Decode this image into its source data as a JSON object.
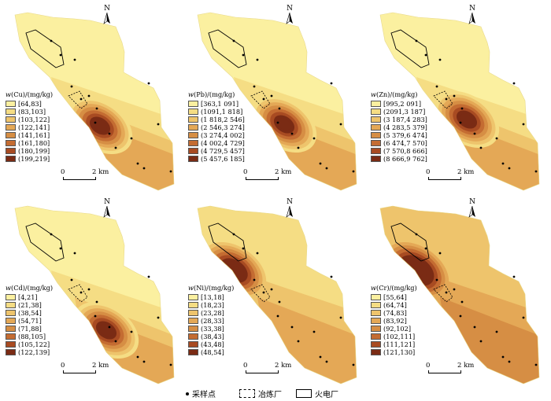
{
  "colors": {
    "ramp": [
      "#fbf0a0",
      "#f5dd84",
      "#eec46c",
      "#e4a856",
      "#d68e44",
      "#c46c32",
      "#a84b22",
      "#7a2b14"
    ],
    "outline": "#000000"
  },
  "north_label": "N",
  "scale_labels": {
    "start": "0",
    "end": "2 km"
  },
  "panels": [
    {
      "id": "cu",
      "title_prefix": "w",
      "title_rest": "(Cu)/(mg/kg)",
      "classes": [
        "[64,83]",
        "(83,103]",
        "(103,122]",
        "(122,141]",
        "(141,161]",
        "(161,180]",
        "(180,199]",
        "(199,219]"
      ]
    },
    {
      "id": "pb",
      "title_prefix": "w",
      "title_rest": "(Pb)/(mg/kg)",
      "classes": [
        "[363,1 091]",
        "(1091,1 818]",
        "(1 818,2 546]",
        "(2 546,3 274]",
        "(3 274,4 002]",
        "(4 002,4 729]",
        "(4 729,5 457]",
        "(5 457,6 185]"
      ]
    },
    {
      "id": "zn",
      "title_prefix": "w",
      "title_rest": "(Zn)/(mg/kg)",
      "classes": [
        "[995,2 091]",
        "(2091,3 187]",
        "(3 187,4 283]",
        "(4 283,5 379]",
        "(5 379,6 474]",
        "(6 474,7 570]",
        "(7 570,8 666]",
        "(8 666,9 762]"
      ]
    },
    {
      "id": "cd",
      "title_prefix": "w",
      "title_rest": "(Cd)/(mg/kg)",
      "classes": [
        "[4,21]",
        "(21,38]",
        "(38,54]",
        "(54,71]",
        "(71,88]",
        "(88,105]",
        "(105,122]",
        "(122,139]"
      ]
    },
    {
      "id": "ni",
      "title_prefix": "w",
      "title_rest": "(Ni)/(mg/kg)",
      "classes": [
        "[13,18]",
        "(18,23]",
        "(23,28]",
        "(28,33]",
        "(33,38]",
        "(38,43]",
        "(43,48]",
        "(48,54]"
      ]
    },
    {
      "id": "cr",
      "title_prefix": "w",
      "title_rest": "(Cr)/(mg/kg)",
      "classes": [
        "[55,64]",
        "(64,74]",
        "(74,83]",
        "(83,92]",
        "(92,102]",
        "(102,111]",
        "(111,121]",
        "(121,130]"
      ]
    }
  ],
  "legend": {
    "sampling_point": "采样点",
    "smelter": "冶炼厂",
    "power_plant": "火电厂"
  }
}
